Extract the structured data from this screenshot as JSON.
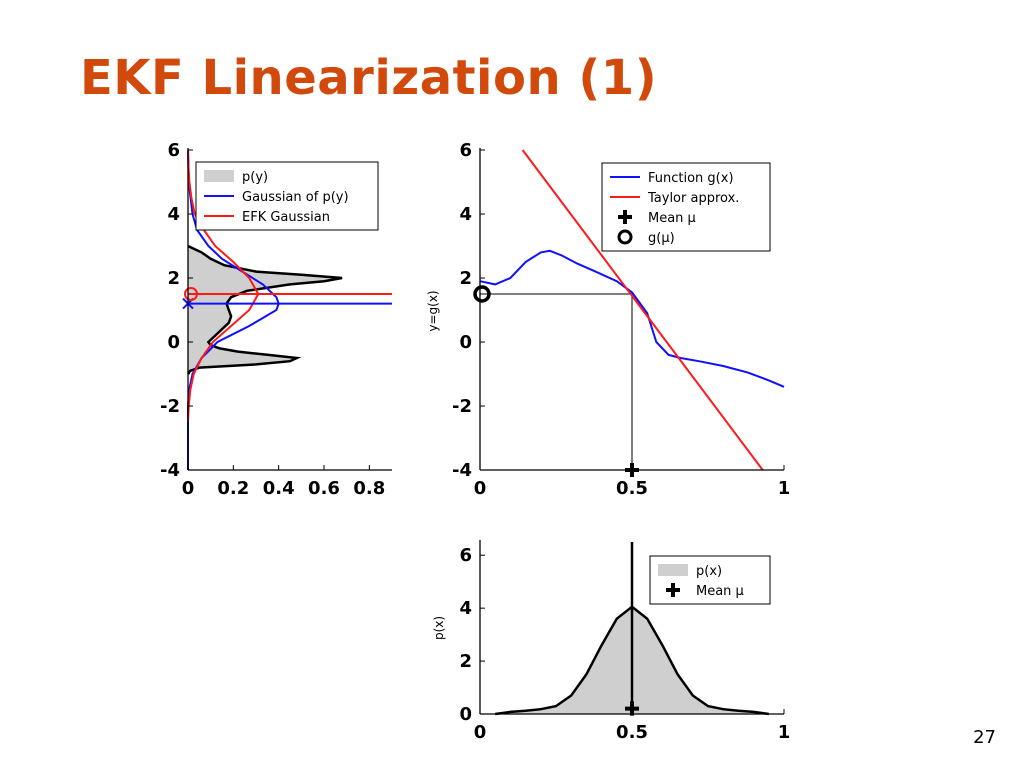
{
  "slide": {
    "title": "EKF Linearization (1)",
    "page_number": "27"
  },
  "colors": {
    "title": "#d14a0c",
    "blue": "#1010ff",
    "red": "#ff1a1a",
    "fill": "#cfcfcf"
  },
  "chart_data": [
    {
      "id": "py",
      "type": "area",
      "orientation": "horizontal-density",
      "xlim": [
        0,
        0.9
      ],
      "ylim": [
        -4,
        6
      ],
      "xticks": [
        "0",
        "0.2",
        "0.4",
        "0.6",
        "0.8"
      ],
      "yticks": [
        "-4",
        "-2",
        "0",
        "2",
        "4",
        "6"
      ],
      "legend": [
        "p(y)",
        "Gaussian of p(y)",
        "EFK Gaussian"
      ],
      "legend_position": "top-right",
      "series": [
        {
          "name": "p(y)",
          "style": "filled",
          "y": [
            -1.0,
            -0.9,
            -0.8,
            -0.7,
            -0.6,
            -0.5,
            -0.4,
            -0.3,
            -0.2,
            -0.1,
            0.0,
            0.2,
            0.4,
            0.6,
            0.8,
            1.0,
            1.2,
            1.4,
            1.6,
            1.8,
            1.9,
            2.0,
            2.1,
            2.2,
            2.4,
            2.6,
            2.8,
            2.9,
            3.0
          ],
          "x": [
            0.0,
            0.01,
            0.05,
            0.3,
            0.45,
            0.48,
            0.35,
            0.22,
            0.14,
            0.1,
            0.09,
            0.12,
            0.15,
            0.18,
            0.19,
            0.18,
            0.17,
            0.19,
            0.26,
            0.45,
            0.6,
            0.68,
            0.5,
            0.3,
            0.16,
            0.1,
            0.06,
            0.03,
            0.0
          ]
        },
        {
          "name": "Gaussian of p(y)",
          "mean": 1.2,
          "y": [
            -4.0,
            -2.0,
            -1.5,
            -1.0,
            -0.5,
            0.0,
            0.5,
            1.0,
            1.2,
            1.4,
            1.8,
            2.2,
            2.6,
            3.0,
            3.5,
            4.0,
            5.0,
            6.0
          ],
          "x": [
            0.0,
            0.0,
            0.005,
            0.02,
            0.06,
            0.13,
            0.27,
            0.39,
            0.4,
            0.39,
            0.33,
            0.24,
            0.15,
            0.09,
            0.04,
            0.02,
            0.003,
            0.0
          ]
        },
        {
          "name": "EFK Gaussian",
          "mean": 1.5,
          "y": [
            -2.5,
            -2.0,
            -1.5,
            -1.0,
            -0.5,
            0.0,
            0.5,
            1.0,
            1.5,
            2.0,
            2.5,
            3.0,
            3.5,
            4.0,
            4.5,
            5.0,
            5.5,
            6.0
          ],
          "x": [
            0.0,
            0.003,
            0.01,
            0.025,
            0.06,
            0.11,
            0.19,
            0.27,
            0.31,
            0.27,
            0.2,
            0.12,
            0.07,
            0.03,
            0.015,
            0.006,
            0.002,
            0.0
          ]
        }
      ],
      "markers": {
        "gaussian_mean_y": 1.2,
        "ekf_mean_y": 1.5
      }
    },
    {
      "id": "gx",
      "type": "line",
      "xlim": [
        0,
        1
      ],
      "ylim": [
        -4,
        6
      ],
      "xticks": [
        "0",
        "0.5",
        "1"
      ],
      "yticks": [
        "-4",
        "-2",
        "0",
        "2",
        "4",
        "6"
      ],
      "ylabel": "y=g(x)",
      "legend": [
        "Function g(x)",
        "Taylor approx.",
        "Mean μ",
        "g(μ)"
      ],
      "legend_position": "top-right",
      "series": [
        {
          "name": "Function g(x)",
          "x": [
            0.0,
            0.05,
            0.1,
            0.15,
            0.2,
            0.23,
            0.27,
            0.32,
            0.38,
            0.45,
            0.5,
            0.55,
            0.58,
            0.62,
            0.66,
            0.72,
            0.8,
            0.88,
            0.95,
            1.0
          ],
          "y": [
            1.9,
            1.8,
            2.0,
            2.5,
            2.8,
            2.85,
            2.7,
            2.45,
            2.2,
            1.9,
            1.55,
            0.9,
            0.0,
            -0.4,
            -0.5,
            -0.6,
            -0.75,
            -0.95,
            -1.2,
            -1.4
          ]
        },
        {
          "name": "Taylor approx.",
          "x": [
            0.14,
            0.93
          ],
          "y": [
            6.0,
            -4.0
          ]
        }
      ],
      "mean": {
        "x": 0.5,
        "y": -4.0
      },
      "g_mu": {
        "x": 0.0,
        "y": 1.5
      },
      "guides": {
        "mu": 0.5,
        "g_mu": 1.5
      }
    },
    {
      "id": "px",
      "type": "area",
      "xlim": [
        0,
        1
      ],
      "ylim": [
        0,
        6.5
      ],
      "xticks": [
        "0",
        "0.5",
        "1"
      ],
      "yticks": [
        "0",
        "2",
        "4",
        "6"
      ],
      "ylabel": "p(x)",
      "legend": [
        "p(x)",
        "Mean μ"
      ],
      "legend_position": "top-right",
      "series": [
        {
          "name": "p(x)",
          "x": [
            0.05,
            0.1,
            0.15,
            0.2,
            0.25,
            0.3,
            0.35,
            0.4,
            0.45,
            0.5,
            0.55,
            0.6,
            0.65,
            0.7,
            0.75,
            0.8,
            0.85,
            0.9,
            0.95
          ],
          "y": [
            0.0,
            0.08,
            0.12,
            0.18,
            0.3,
            0.7,
            1.5,
            2.6,
            3.6,
            4.05,
            3.6,
            2.6,
            1.5,
            0.7,
            0.3,
            0.18,
            0.12,
            0.08,
            0.0
          ]
        }
      ],
      "mean": {
        "x": 0.5,
        "y": 0.05
      }
    }
  ]
}
